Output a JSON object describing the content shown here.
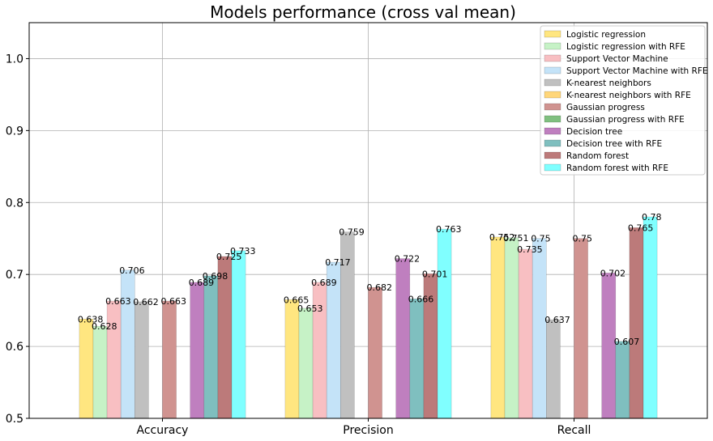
{
  "chart_data": {
    "type": "bar",
    "title": "Models performance (cross val mean)",
    "xlabel": "",
    "ylabel": "",
    "categories": [
      "Accuracy",
      "Precision",
      "Recall"
    ],
    "ylim": [
      0.5,
      1.05
    ],
    "yticks": [
      "0.5",
      "0.6",
      "0.7",
      "0.8",
      "0.9",
      "1.0"
    ],
    "grid": true,
    "legend_position": "top-right",
    "series": [
      {
        "name": "Logistic regression",
        "color": "#ffe680",
        "values": [
          0.638,
          0.665,
          0.752
        ],
        "labels": [
          "0.638",
          "0.665",
          "0.752"
        ]
      },
      {
        "name": "Logistic regression with RFE",
        "color": "#c6f2c6",
        "values": [
          0.628,
          0.653,
          0.751
        ],
        "labels": [
          "0.628",
          "0.653",
          "0.751"
        ]
      },
      {
        "name": "Support Vector Machine",
        "color": "#f8bfc2",
        "values": [
          0.663,
          0.689,
          0.735
        ],
        "labels": [
          "0.663",
          "0.689",
          "0.735"
        ]
      },
      {
        "name": "Support Vector Machine with RFE",
        "color": "#c4e3f8",
        "values": [
          0.706,
          0.717,
          0.75
        ],
        "labels": [
          "0.706",
          "0.717",
          "0.75"
        ]
      },
      {
        "name": "K-nearest neighbors",
        "color": "#c0c0c0",
        "values": [
          0.662,
          0.759,
          0.637
        ],
        "labels": [
          "0.662",
          "0.759",
          "0.637"
        ]
      },
      {
        "name": "K-nearest neighbors with RFE",
        "color": "#ffd67a",
        "values": [
          null,
          null,
          null
        ],
        "labels": [
          "",
          "",
          ""
        ]
      },
      {
        "name": "Gaussian progress",
        "color": "#d09390",
        "values": [
          0.663,
          0.682,
          0.75
        ],
        "labels": [
          "0.663",
          "0.682",
          "0.75"
        ]
      },
      {
        "name": "Gaussian progress with RFE",
        "color": "#80c080",
        "values": [
          null,
          null,
          null
        ],
        "labels": [
          "",
          "",
          ""
        ]
      },
      {
        "name": "Decision tree",
        "color": "#bf7fbf",
        "values": [
          0.689,
          0.722,
          0.702
        ],
        "labels": [
          "0.689",
          "0.722",
          "0.702"
        ]
      },
      {
        "name": "Decision tree with RFE",
        "color": "#7fbfbf",
        "values": [
          0.698,
          0.666,
          0.607
        ],
        "labels": [
          "0.698",
          "0.666",
          "0.607"
        ]
      },
      {
        "name": "Random forest",
        "color": "#bc7a7a",
        "values": [
          0.725,
          0.701,
          0.765
        ],
        "labels": [
          "0.725",
          "0.701",
          "0.765"
        ]
      },
      {
        "name": "Random forest with RFE",
        "color": "#80ffff",
        "values": [
          0.733,
          0.763,
          0.78
        ],
        "labels": [
          "0.733",
          "0.763",
          "0.78"
        ]
      }
    ]
  }
}
